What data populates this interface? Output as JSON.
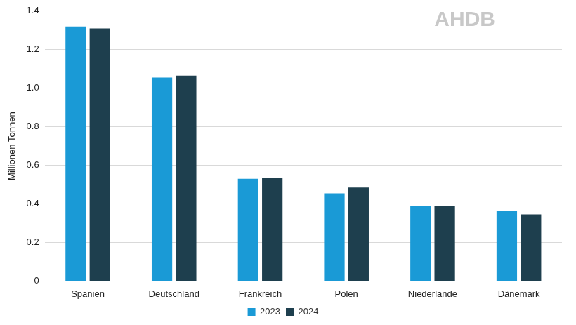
{
  "chart_data": {
    "type": "bar",
    "y_label": "Millionen Tonnen",
    "annotations": [
      "AHDB"
    ],
    "categories": [
      "Spanien",
      "Deutschland",
      "Frankreich",
      "Polen",
      "Niederlande",
      "Dänemark"
    ],
    "series": [
      {
        "name": "2023",
        "color": "#1a9ad6",
        "values": [
          1.32,
          1.055,
          0.53,
          0.455,
          0.39,
          0.365
        ]
      },
      {
        "name": "2024",
        "color": "#1e3f4e",
        "values": [
          1.31,
          1.065,
          0.535,
          0.485,
          0.39,
          0.345
        ]
      }
    ],
    "ylim": [
      0,
      1.4
    ],
    "yticks": [
      0,
      0.2,
      0.4,
      0.6,
      0.8,
      {
        "value": 1,
        "label": "1.0"
      },
      1.2,
      1.4
    ],
    "grid": true,
    "legend": "bottom"
  }
}
